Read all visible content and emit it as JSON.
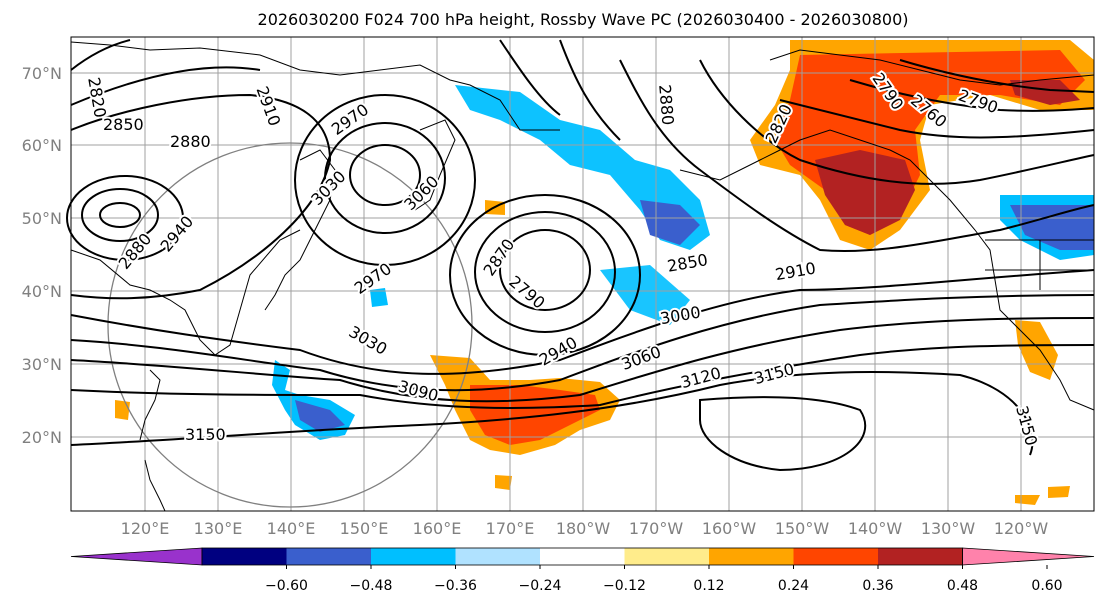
{
  "title": "2026030200 F024 700 hPa height, Rossby Wave PC (2026030400 - 2026030800)",
  "lat_labels": [
    "70°N",
    "60°N",
    "50°N",
    "40°N",
    "30°N",
    "20°N"
  ],
  "lon_labels": [
    "120°E",
    "130°E",
    "140°E",
    "150°E",
    "160°E",
    "170°E",
    "180°W",
    "170°W",
    "160°W",
    "150°W",
    "140°W",
    "130°W",
    "120°W"
  ],
  "colorbar": {
    "labels": [
      "−0.60",
      "−0.48",
      "−0.36",
      "−0.24",
      "−0.12",
      "0.12",
      "0.24",
      "0.36",
      "0.48",
      "0.60"
    ],
    "colors": [
      "#9932cc",
      "#000080",
      "#3a5fcd",
      "#00bfff",
      "#b0e2ff",
      "#ffffff",
      "#ffec8b",
      "#ffa500",
      "#ff4500",
      "#b22222",
      "#ff82ab"
    ]
  },
  "contour_labels": [
    "2820",
    "2850",
    "2880",
    "2910",
    "2970",
    "3030",
    "3060",
    "2880",
    "2940",
    "2970",
    "2870",
    "2790",
    "3030",
    "3090",
    "3150",
    "2940",
    "2880",
    "2820",
    "2790",
    "2760",
    "2790",
    "2850",
    "2910",
    "3000",
    "3060",
    "3120",
    "3150",
    "3150"
  ]
}
